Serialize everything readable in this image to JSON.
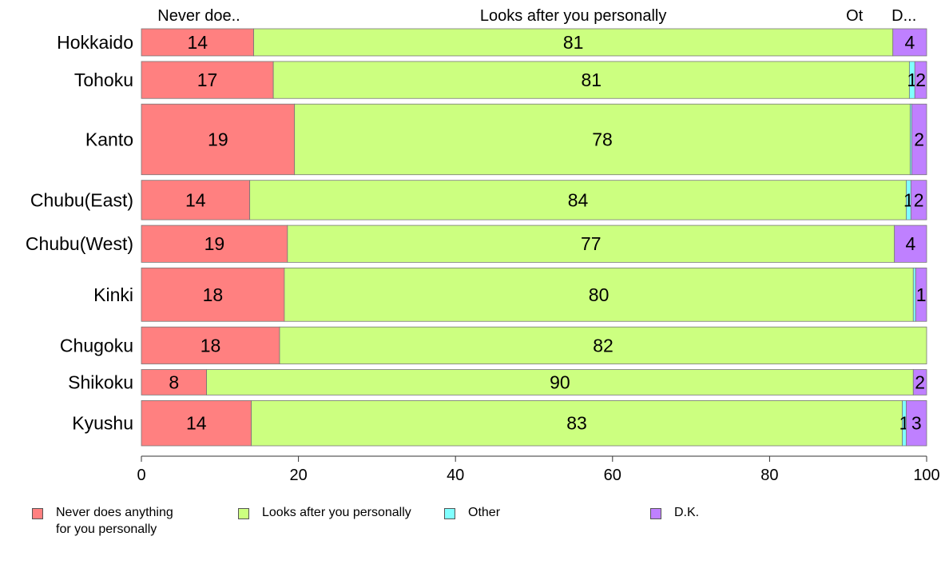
{
  "chart_data": {
    "type": "bar",
    "orientation": "horizontal",
    "stacked": true,
    "categories": [
      "Hokkaido",
      "Tohoku",
      "Kanto",
      "Chubu(East)",
      "Chubu(West)",
      "Kinki",
      "Chugoku",
      "Shikoku",
      "Kyushu"
    ],
    "series": [
      {
        "name": "Never does anything\nfor you personally",
        "short_label": "Never doe..",
        "color": "#ff8080",
        "values": [
          14.3,
          16.8,
          19.5,
          13.8,
          18.6,
          18.2,
          17.6,
          8.3,
          14.0
        ]
      },
      {
        "name": "Looks after you personally",
        "short_label": "Looks after you personally",
        "color": "#ccff80",
        "values": [
          81.4,
          81.0,
          78.4,
          83.6,
          77.3,
          80.1,
          82.4,
          90.0,
          82.9
        ]
      },
      {
        "name": "Other",
        "short_label": "Ot",
        "color": "#80ffff",
        "values": [
          0.0,
          0.7,
          0.2,
          0.6,
          0.0,
          0.3,
          0.0,
          0.0,
          0.5
        ]
      },
      {
        "name": "D.K.",
        "short_label": "D...",
        "color": "#bf80ff",
        "values": [
          4.3,
          1.5,
          1.9,
          2.0,
          4.1,
          1.4,
          0.0,
          1.7,
          2.6
        ]
      }
    ],
    "data_labels": [
      [
        "14",
        "81",
        "",
        "4"
      ],
      [
        "17",
        "81",
        "1",
        "2"
      ],
      [
        "19",
        "78",
        "",
        "2"
      ],
      [
        "14",
        "84",
        "1",
        "2"
      ],
      [
        "19",
        "77",
        "",
        "4"
      ],
      [
        "18",
        "80",
        "",
        "1"
      ],
      [
        "18",
        "82",
        "",
        ""
      ],
      [
        "8",
        "90",
        "",
        "2"
      ],
      [
        "14",
        "83",
        "1",
        "3"
      ]
    ],
    "bar_weights": [
      33,
      45,
      86,
      48,
      45,
      65,
      45,
      31,
      55
    ],
    "xlim": [
      0,
      100
    ],
    "xticks": [
      0,
      20,
      40,
      60,
      80,
      100
    ],
    "legend_position": "bottom"
  }
}
